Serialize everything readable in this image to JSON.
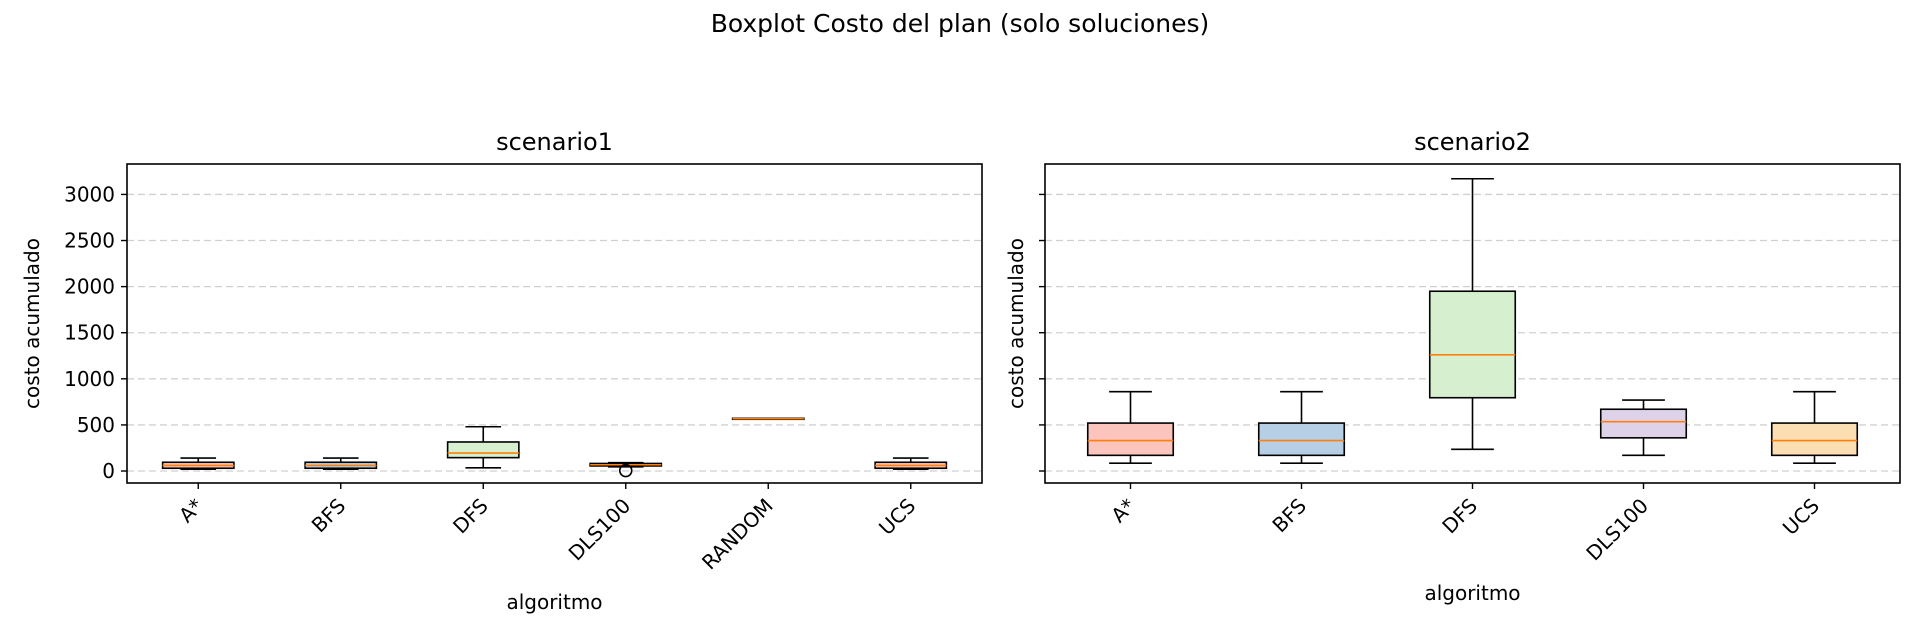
{
  "figure": {
    "suptitle": "Boxplot Costo del plan (solo soluciones)"
  },
  "chart_data": [
    {
      "type": "box",
      "title": "scenario1",
      "xlabel": "algoritmo",
      "ylabel": "costo acumulado",
      "ylim": [
        -130,
        3330
      ],
      "yticks": [
        0,
        500,
        1000,
        1500,
        2000,
        2500,
        3000
      ],
      "grid": "y-dashed",
      "categories": [
        "A*",
        "BFS",
        "DFS",
        "DLS100",
        "RANDOM",
        "UCS"
      ],
      "boxes": [
        {
          "category": "A*",
          "whislo": 20,
          "q1": 30,
          "med": 60,
          "q3": 95,
          "whishi": 140,
          "fill": "#fbc4bc",
          "fliers": []
        },
        {
          "category": "BFS",
          "whislo": 20,
          "q1": 30,
          "med": 60,
          "q3": 95,
          "whishi": 140,
          "fill": "#b7cfe4",
          "fliers": []
        },
        {
          "category": "DFS",
          "whislo": 35,
          "q1": 145,
          "med": 195,
          "q3": 315,
          "whishi": 480,
          "fill": "#d5efcf",
          "fliers": []
        },
        {
          "category": "DLS100",
          "whislo": 45,
          "q1": 55,
          "med": 68,
          "q3": 82,
          "whishi": 90,
          "fill": "#ded2e8",
          "fliers": [
            5
          ]
        },
        {
          "category": "RANDOM",
          "whislo": 565,
          "q1": 565,
          "med": 568,
          "q3": 572,
          "whishi": 572,
          "fill": "#fbdeb1",
          "fliers": []
        },
        {
          "category": "UCS",
          "whislo": 20,
          "q1": 30,
          "med": 60,
          "q3": 95,
          "whishi": 140,
          "fill": "#fbc4bc",
          "fliers": []
        }
      ]
    },
    {
      "type": "box",
      "title": "scenario2",
      "xlabel": "algoritmo",
      "ylabel": "costo acumulado",
      "ylim": [
        -130,
        3330
      ],
      "yticks": [
        0,
        500,
        1000,
        1500,
        2000,
        2500,
        3000
      ],
      "grid": "y-dashed",
      "categories": [
        "A*",
        "BFS",
        "DFS",
        "DLS100",
        "UCS"
      ],
      "boxes": [
        {
          "category": "A*",
          "whislo": 85,
          "q1": 170,
          "med": 330,
          "q3": 520,
          "whishi": 860,
          "fill": "#fbc4bc",
          "fliers": []
        },
        {
          "category": "BFS",
          "whislo": 85,
          "q1": 170,
          "med": 330,
          "q3": 520,
          "whishi": 860,
          "fill": "#b7cfe4",
          "fliers": []
        },
        {
          "category": "DFS",
          "whislo": 235,
          "q1": 795,
          "med": 1260,
          "q3": 1950,
          "whishi": 3170,
          "fill": "#d5efcf",
          "fliers": []
        },
        {
          "category": "DLS100",
          "whislo": 170,
          "q1": 360,
          "med": 535,
          "q3": 670,
          "whishi": 770,
          "fill": "#ded2e8",
          "fliers": []
        },
        {
          "category": "UCS",
          "whislo": 85,
          "q1": 170,
          "med": 330,
          "q3": 520,
          "whishi": 860,
          "fill": "#fbdeb1",
          "fliers": []
        }
      ]
    }
  ],
  "style": {
    "median_color": "#ff7f0e",
    "grid_color": "#d0d0d0",
    "box_edge": "#000000"
  }
}
